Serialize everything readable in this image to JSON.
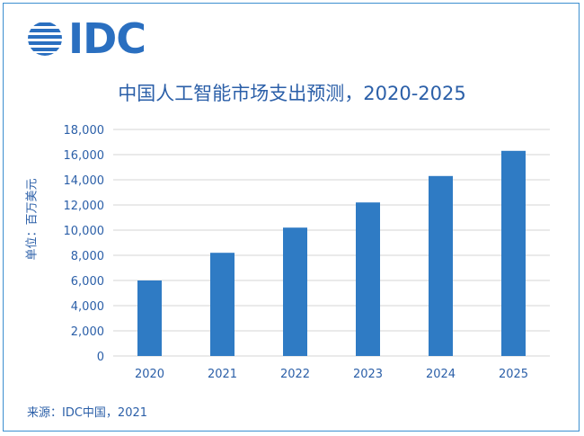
{
  "logo": {
    "text": "IDC",
    "color": "#2a6fc0"
  },
  "source": "来源：IDC中国，2021",
  "chart_data": {
    "type": "bar",
    "title": "中国人工智能市场支出预测，2020-2025",
    "ylabel": "单位：百万美元",
    "xlabel": "",
    "categories": [
      "2020",
      "2021",
      "2022",
      "2023",
      "2024",
      "2025"
    ],
    "values": [
      6000,
      8200,
      10200,
      12200,
      14300,
      16300
    ],
    "ylim": [
      0,
      18000
    ],
    "yticks": [
      "0",
      "2,000",
      "4,000",
      "6,000",
      "8,000",
      "10,000",
      "12,000",
      "14,000",
      "16,000",
      "18,000"
    ],
    "ytick_values": [
      0,
      2000,
      4000,
      6000,
      8000,
      10000,
      12000,
      14000,
      16000,
      18000
    ],
    "grid": true,
    "bar_color": "#2f7bc4",
    "text_color": "#2b5fa8",
    "grid_color": "#d5d5d5"
  }
}
